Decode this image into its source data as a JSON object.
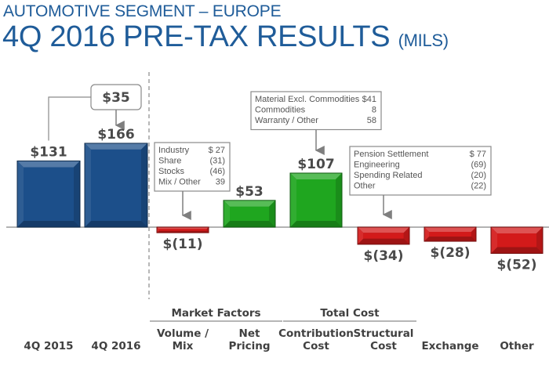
{
  "header": {
    "subtitle": "AUTOMOTIVE SEGMENT – EUROPE",
    "title": "4Q 2016 PRE-TAX RESULTS",
    "unit": "(MILS)"
  },
  "colors": {
    "title": "#1f5c99",
    "total_bar": "#1c4f8a",
    "positive_bar": "#1fa61f",
    "negative_bar": "#d31a1a"
  },
  "chart_data": {
    "type": "bar",
    "subtype": "waterfall",
    "title": "4Q 2016 PRE-TAX RESULTS (MILS)",
    "categories": [
      "4Q 2015",
      "4Q 2016",
      "Volume / Mix",
      "Net Pricing",
      "Contribution Cost",
      "Structural Cost",
      "Exchange",
      "Other"
    ],
    "category_lines": [
      [
        "4Q 2015"
      ],
      [
        "4Q 2016"
      ],
      [
        "Volume /",
        "Mix"
      ],
      [
        "Net",
        "Pricing"
      ],
      [
        "Contribution",
        "Cost"
      ],
      [
        "Structural",
        "Cost"
      ],
      [
        "Exchange"
      ],
      [
        "Other"
      ]
    ],
    "values": [
      131,
      166,
      -11,
      53,
      107,
      -34,
      -28,
      -52
    ],
    "kinds": [
      "total",
      "total",
      "negative",
      "positive",
      "positive",
      "negative",
      "negative",
      "negative"
    ],
    "data_labels": [
      "$131",
      "$166",
      "$(11)",
      "$53",
      "$107",
      "$(34)",
      "$(28)",
      "$(52)"
    ],
    "groups": [
      {
        "label": "Market Factors",
        "categories": [
          "Volume / Mix",
          "Net Pricing"
        ]
      },
      {
        "label": "Total Cost",
        "categories": [
          "Contribution Cost",
          "Structural Cost"
        ]
      }
    ],
    "change_callout": {
      "label": "$35",
      "from": "4Q 2015",
      "to": "4Q 2016"
    },
    "annotations": [
      {
        "target": "Volume / Mix",
        "rows": [
          {
            "label": "Industry",
            "value": "$ 27"
          },
          {
            "label": "Share",
            "value": "(31)"
          },
          {
            "label": "Stocks",
            "value": "(46)"
          },
          {
            "label": "Mix / Other",
            "value": "39"
          }
        ]
      },
      {
        "target": "Contribution Cost",
        "rows": [
          {
            "label": "Material Excl. Commodities",
            "value": "$41"
          },
          {
            "label": "Commodities",
            "value": "8"
          },
          {
            "label": "Warranty / Other",
            "value": "58"
          }
        ]
      },
      {
        "target": "Structural Cost",
        "rows": [
          {
            "label": "Pension Settlement",
            "value": "$ 77"
          },
          {
            "label": "Engineering",
            "value": "(69)"
          },
          {
            "label": "Spending Related",
            "value": "(20)"
          },
          {
            "label": "Other",
            "value": "(22)"
          }
        ]
      }
    ],
    "xlabel": "",
    "ylabel": "",
    "grid": false,
    "legend": "none"
  }
}
